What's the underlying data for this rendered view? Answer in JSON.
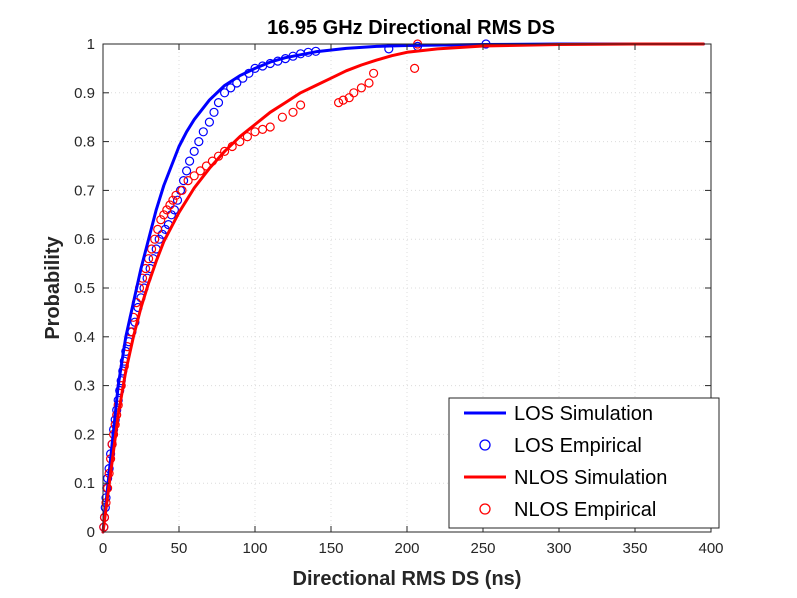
{
  "chart_data": {
    "type": "line",
    "title": "16.95 GHz Directional RMS DS",
    "xlabel": "Directional RMS DS (ns)",
    "ylabel": "Probability",
    "xlim": [
      0,
      400
    ],
    "ylim": [
      0,
      1
    ],
    "xticks": [
      0,
      50,
      100,
      150,
      200,
      250,
      300,
      350,
      400
    ],
    "yticks": [
      0,
      0.1,
      0.2,
      0.3,
      0.4,
      0.5,
      0.6,
      0.7,
      0.8,
      0.9,
      1
    ],
    "xtick_labels": [
      "0",
      "50",
      "100",
      "150",
      "200",
      "250",
      "300",
      "350",
      "400"
    ],
    "ytick_labels": [
      "0",
      "0.1",
      "0.2",
      "0.3",
      "0.4",
      "0.5",
      "0.6",
      "0.7",
      "0.8",
      "0.9",
      "1"
    ],
    "grid": true,
    "legend_position": "bottom-right",
    "series": [
      {
        "name": "LOS Simulation",
        "style": "line",
        "color": "#0000ff",
        "x": [
          0,
          5,
          10,
          15,
          20,
          25,
          30,
          35,
          40,
          45,
          50,
          55,
          60,
          70,
          80,
          90,
          100,
          110,
          120,
          140,
          160,
          180,
          200,
          250,
          300,
          350,
          395
        ],
        "y": [
          0,
          0.15,
          0.3,
          0.4,
          0.47,
          0.54,
          0.6,
          0.66,
          0.71,
          0.75,
          0.79,
          0.82,
          0.845,
          0.885,
          0.915,
          0.935,
          0.95,
          0.963,
          0.972,
          0.984,
          0.991,
          0.995,
          0.997,
          0.999,
          1.0,
          1.0,
          1.0
        ]
      },
      {
        "name": "LOS Empirical",
        "style": "marker",
        "color": "#0000ff",
        "x": [
          0.5,
          1,
          1.5,
          2,
          2.5,
          3,
          4,
          5,
          6,
          7,
          8,
          9,
          10,
          11,
          12,
          13,
          14,
          15,
          17,
          19,
          21,
          23,
          25,
          27,
          29,
          31,
          33,
          35,
          37,
          39,
          41,
          43,
          45,
          47,
          49,
          51,
          53,
          55,
          57,
          60,
          63,
          66,
          70,
          73,
          76,
          80,
          84,
          88,
          92,
          96,
          100,
          105,
          110,
          115,
          120,
          125,
          130,
          135,
          140,
          188,
          207,
          252
        ],
        "y": [
          0.01,
          0.03,
          0.05,
          0.07,
          0.09,
          0.11,
          0.13,
          0.16,
          0.18,
          0.21,
          0.23,
          0.25,
          0.27,
          0.29,
          0.31,
          0.33,
          0.35,
          0.37,
          0.39,
          0.41,
          0.43,
          0.46,
          0.48,
          0.5,
          0.52,
          0.54,
          0.56,
          0.58,
          0.6,
          0.61,
          0.62,
          0.63,
          0.65,
          0.66,
          0.68,
          0.7,
          0.72,
          0.74,
          0.76,
          0.78,
          0.8,
          0.82,
          0.84,
          0.86,
          0.88,
          0.9,
          0.91,
          0.92,
          0.93,
          0.94,
          0.95,
          0.955,
          0.96,
          0.965,
          0.97,
          0.975,
          0.98,
          0.983,
          0.985,
          0.99,
          0.995,
          1.0
        ]
      },
      {
        "name": "NLOS Simulation",
        "style": "line",
        "color": "#ff0000",
        "x": [
          0,
          5,
          10,
          15,
          20,
          25,
          30,
          35,
          40,
          50,
          60,
          70,
          80,
          90,
          100,
          110,
          120,
          130,
          140,
          150,
          160,
          170,
          180,
          190,
          200,
          220,
          250,
          300,
          350,
          395
        ],
        "y": [
          0,
          0.12,
          0.24,
          0.33,
          0.4,
          0.46,
          0.51,
          0.555,
          0.595,
          0.655,
          0.705,
          0.745,
          0.78,
          0.81,
          0.835,
          0.86,
          0.88,
          0.9,
          0.915,
          0.93,
          0.945,
          0.957,
          0.967,
          0.976,
          0.983,
          0.99,
          0.996,
          0.999,
          1.0,
          1.0
        ]
      },
      {
        "name": "NLOS Empirical",
        "style": "marker",
        "color": "#ff0000",
        "x": [
          0.5,
          1,
          2,
          3,
          4,
          5,
          6,
          7,
          8,
          9,
          10,
          12,
          14,
          16,
          18,
          20,
          22,
          24,
          26,
          28,
          30,
          32,
          34,
          36,
          38,
          40,
          42,
          44,
          46,
          48,
          52,
          56,
          60,
          64,
          68,
          72,
          76,
          80,
          85,
          90,
          95,
          100,
          105,
          110,
          118,
          125,
          130,
          155,
          158,
          162,
          165,
          170,
          175,
          178,
          205,
          207
        ],
        "y": [
          0.01,
          0.03,
          0.06,
          0.09,
          0.12,
          0.15,
          0.18,
          0.2,
          0.22,
          0.24,
          0.26,
          0.3,
          0.34,
          0.38,
          0.41,
          0.44,
          0.47,
          0.5,
          0.52,
          0.54,
          0.56,
          0.58,
          0.6,
          0.62,
          0.64,
          0.65,
          0.66,
          0.67,
          0.68,
          0.69,
          0.7,
          0.72,
          0.73,
          0.74,
          0.75,
          0.76,
          0.77,
          0.78,
          0.79,
          0.8,
          0.81,
          0.82,
          0.825,
          0.83,
          0.85,
          0.86,
          0.875,
          0.88,
          0.885,
          0.89,
          0.9,
          0.91,
          0.92,
          0.94,
          0.95,
          1.0
        ]
      }
    ]
  }
}
